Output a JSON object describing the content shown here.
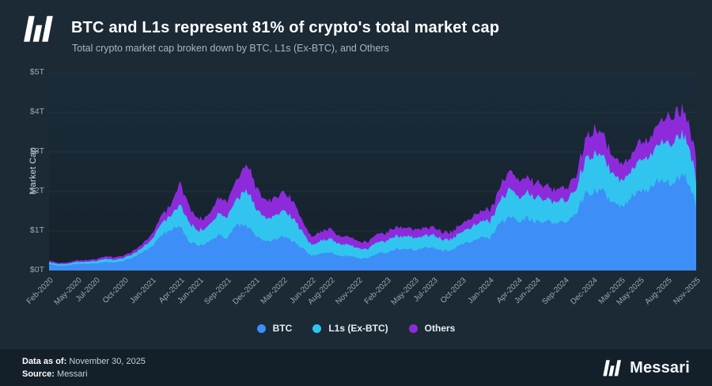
{
  "header": {
    "title": "BTC and L1s represent 81% of crypto's total market cap",
    "subtitle": "Total crypto market cap broken down by BTC, L1s (Ex-BTC), and Others"
  },
  "footer": {
    "data_as_of_label": "Data as of:",
    "data_as_of_value": "November 30, 2025",
    "source_label": "Source:",
    "source_value": "Messari",
    "brand": "Messari"
  },
  "colors": {
    "background": "#1b2a35",
    "footer_background": "#142029",
    "btc": "#3e8ef7",
    "l1": "#31c4ef",
    "others": "#8d2bdb",
    "grid": "rgba(255,255,255,0.055)",
    "axis_text": "#9aa9b4"
  },
  "chart_data": {
    "type": "area",
    "stacked": true,
    "title": "BTC and L1s represent 81% of crypto's total market cap",
    "subtitle": "Total crypto market cap broken down by BTC, L1s (Ex-BTC), and Others",
    "ylabel": "Market Cap",
    "unit": "trillions USD",
    "ylim": [
      0,
      5
    ],
    "y_ticks": [
      "$0T",
      "$1T",
      "$2T",
      "$3T",
      "$4T",
      "$5T"
    ],
    "legend": [
      "BTC",
      "L1s (Ex-BTC)",
      "Others"
    ],
    "legend_position": "bottom",
    "grid": true,
    "x": [
      "Feb-2020",
      "Mar-2020",
      "Apr-2020",
      "May-2020",
      "Jun-2020",
      "Jul-2020",
      "Aug-2020",
      "Sep-2020",
      "Oct-2020",
      "Nov-2020",
      "Dec-2020",
      "Jan-2021",
      "Feb-2021",
      "Mar-2021",
      "Apr-2021",
      "May-2021",
      "Jun-2021",
      "Jul-2021",
      "Aug-2021",
      "Sep-2021",
      "Oct-2021",
      "Nov-2021",
      "Dec-2021",
      "Jan-2022",
      "Feb-2022",
      "Mar-2022",
      "Apr-2022",
      "May-2022",
      "Jun-2022",
      "Jul-2022",
      "Aug-2022",
      "Sep-2022",
      "Oct-2022",
      "Nov-2022",
      "Dec-2022",
      "Jan-2023",
      "Feb-2023",
      "Mar-2023",
      "Apr-2023",
      "May-2023",
      "Jun-2023",
      "Jul-2023",
      "Aug-2023",
      "Sep-2023",
      "Oct-2023",
      "Nov-2023",
      "Dec-2023",
      "Jan-2024",
      "Feb-2024",
      "Mar-2024",
      "Apr-2024",
      "May-2024",
      "Jun-2024",
      "Jul-2024",
      "Aug-2024",
      "Sep-2024",
      "Oct-2024",
      "Nov-2024",
      "Dec-2024",
      "Jan-2025",
      "Feb-2025",
      "Mar-2025",
      "Apr-2025",
      "May-2025",
      "Jun-2025",
      "Jul-2025",
      "Aug-2025",
      "Sep-2025",
      "Oct-2025",
      "Nov-2025"
    ],
    "x_ticks": [
      {
        "label": "Feb-2020",
        "i": 0
      },
      {
        "label": "May-2020",
        "i": 3
      },
      {
        "label": "Jul-2020",
        "i": 5
      },
      {
        "label": "Oct-2020",
        "i": 8
      },
      {
        "label": "Jan-2021",
        "i": 11
      },
      {
        "label": "Apr-2021",
        "i": 14
      },
      {
        "label": "Jun-2021",
        "i": 16
      },
      {
        "label": "Sep-2021",
        "i": 19
      },
      {
        "label": "Dec-2021",
        "i": 22
      },
      {
        "label": "Mar-2022",
        "i": 25
      },
      {
        "label": "Jun-2022",
        "i": 28
      },
      {
        "label": "Aug-2022",
        "i": 30
      },
      {
        "label": "Nov-2022",
        "i": 33
      },
      {
        "label": "Feb-2023",
        "i": 36
      },
      {
        "label": "May-2023",
        "i": 39
      },
      {
        "label": "Jul-2023",
        "i": 41
      },
      {
        "label": "Oct-2023",
        "i": 44
      },
      {
        "label": "Jan-2024",
        "i": 47
      },
      {
        "label": "Apr-2024",
        "i": 50
      },
      {
        "label": "Jun-2024",
        "i": 52
      },
      {
        "label": "Sep-2024",
        "i": 55
      },
      {
        "label": "Dec-2024",
        "i": 58
      },
      {
        "label": "Mar-2025",
        "i": 61
      },
      {
        "label": "May-2025",
        "i": 63
      },
      {
        "label": "Aug-2025",
        "i": 66
      },
      {
        "label": "Nov-2025",
        "i": 69
      }
    ],
    "series": [
      {
        "name": "BTC",
        "color": "#3e8ef7",
        "values": [
          0.16,
          0.12,
          0.13,
          0.17,
          0.17,
          0.18,
          0.21,
          0.2,
          0.25,
          0.33,
          0.45,
          0.62,
          0.88,
          1.05,
          1.12,
          0.72,
          0.64,
          0.7,
          0.9,
          0.82,
          1.14,
          1.15,
          0.9,
          0.73,
          0.78,
          0.85,
          0.74,
          0.56,
          0.37,
          0.43,
          0.46,
          0.37,
          0.38,
          0.31,
          0.32,
          0.43,
          0.45,
          0.54,
          0.56,
          0.52,
          0.58,
          0.57,
          0.5,
          0.52,
          0.65,
          0.73,
          0.82,
          0.82,
          1.18,
          1.36,
          1.22,
          1.32,
          1.24,
          1.27,
          1.15,
          1.24,
          1.36,
          1.88,
          1.98,
          2.02,
          1.68,
          1.62,
          1.83,
          2.06,
          2.08,
          2.28,
          2.2,
          2.35,
          2.35,
          1.65
        ]
      },
      {
        "name": "L1s (Ex-BTC)",
        "color": "#31c4ef",
        "values": [
          0.05,
          0.04,
          0.04,
          0.05,
          0.05,
          0.06,
          0.08,
          0.07,
          0.07,
          0.09,
          0.12,
          0.18,
          0.3,
          0.35,
          0.58,
          0.46,
          0.38,
          0.4,
          0.55,
          0.55,
          0.62,
          0.88,
          0.74,
          0.58,
          0.58,
          0.64,
          0.58,
          0.41,
          0.27,
          0.32,
          0.35,
          0.29,
          0.29,
          0.24,
          0.23,
          0.29,
          0.3,
          0.32,
          0.33,
          0.31,
          0.32,
          0.31,
          0.28,
          0.28,
          0.31,
          0.36,
          0.42,
          0.42,
          0.54,
          0.7,
          0.62,
          0.65,
          0.6,
          0.58,
          0.52,
          0.55,
          0.58,
          0.82,
          0.98,
          0.9,
          0.74,
          0.68,
          0.7,
          0.8,
          0.77,
          0.95,
          1.02,
          1.05,
          1.0,
          0.66
        ]
      },
      {
        "name": "Others",
        "color": "#8d2bdb",
        "values": [
          0.04,
          0.03,
          0.03,
          0.04,
          0.04,
          0.05,
          0.06,
          0.06,
          0.06,
          0.07,
          0.09,
          0.13,
          0.2,
          0.25,
          0.55,
          0.4,
          0.28,
          0.28,
          0.4,
          0.4,
          0.46,
          0.68,
          0.58,
          0.46,
          0.44,
          0.46,
          0.42,
          0.29,
          0.21,
          0.24,
          0.26,
          0.21,
          0.21,
          0.18,
          0.17,
          0.21,
          0.22,
          0.22,
          0.22,
          0.21,
          0.21,
          0.2,
          0.18,
          0.18,
          0.19,
          0.24,
          0.28,
          0.28,
          0.33,
          0.46,
          0.4,
          0.4,
          0.37,
          0.35,
          0.31,
          0.32,
          0.33,
          0.5,
          0.64,
          0.56,
          0.45,
          0.4,
          0.4,
          0.46,
          0.42,
          0.56,
          0.66,
          0.65,
          0.6,
          0.54
        ]
      }
    ]
  }
}
